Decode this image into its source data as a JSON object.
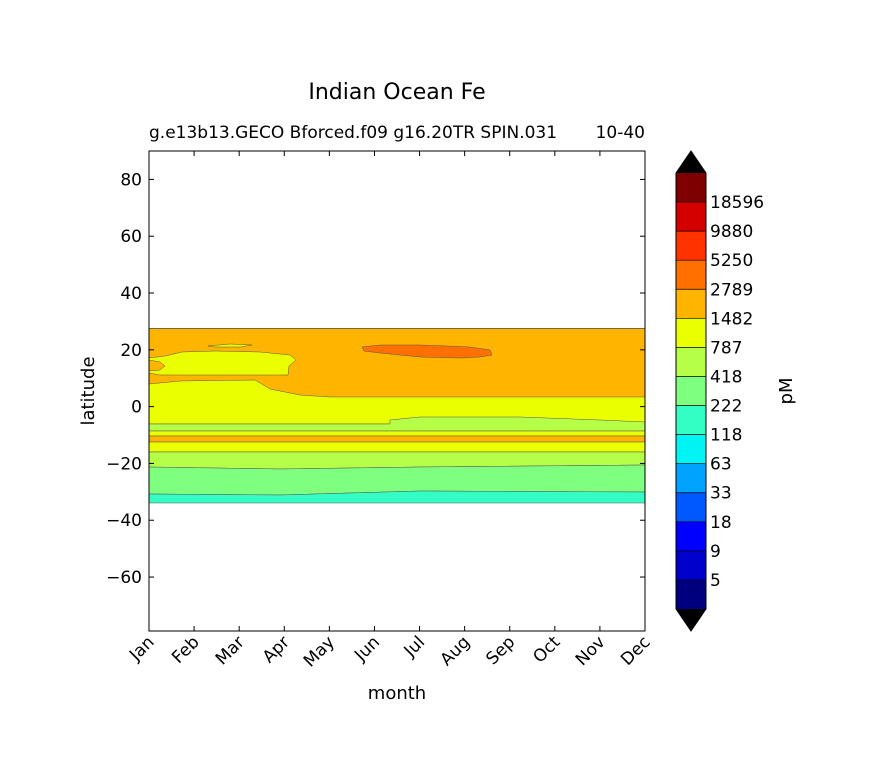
{
  "chart_data": {
    "type": "heatmap",
    "title": "Indian Ocean Fe",
    "subtitle": "g.e13b13.GECO Bforced.f09 g16.20TR SPIN.031",
    "subtitle_right": "10-40",
    "xlabel": "month",
    "ylabel": "latitude",
    "x_ticks": [
      "Jan",
      "Feb",
      "Mar",
      "Apr",
      "May",
      "Jun",
      "Jul",
      "Aug",
      "Sep",
      "Oct",
      "Nov",
      "Dec"
    ],
    "y_ticks": [
      80,
      60,
      40,
      20,
      0,
      -20,
      -40,
      -60
    ],
    "ylim": [
      -79,
      90
    ],
    "colorbar": {
      "label": "pM",
      "tick_labels": [
        "5",
        "9",
        "18",
        "33",
        "63",
        "118",
        "222",
        "418",
        "787",
        "1482",
        "2789",
        "5250",
        "9880",
        "18596"
      ],
      "colors": [
        "#00007f",
        "#0000cd",
        "#0000ff",
        "#0058ff",
        "#00a4ff",
        "#00f4f4",
        "#33ffc4",
        "#7fff7f",
        "#b6ff48",
        "#eaff00",
        "#ffb400",
        "#ff7000",
        "#ff3200",
        "#d40000",
        "#7f0000"
      ],
      "extend_min_color": "#000000",
      "extend_max_color": "#000000"
    },
    "fields": {
      "ocean_lat_range": [
        -34,
        27
      ],
      "bands": [
        {
          "value_class": "1482-2789",
          "note": "orange band north",
          "lat_range": [
            3,
            27
          ]
        },
        {
          "value_class": "787-1482",
          "lat_range": [
            -7,
            3
          ]
        },
        {
          "value_class": "418-787",
          "lat_range": [
            -9,
            -7
          ]
        },
        {
          "value_class": "787-1482",
          "lat_range": [
            -11,
            -9
          ]
        },
        {
          "value_class": "1482-2789",
          "lat_range": [
            -13,
            -11
          ]
        },
        {
          "value_class": "787-1482",
          "lat_range": [
            -16,
            -13
          ]
        },
        {
          "value_class": "418-787",
          "lat_range": [
            -21,
            -16
          ]
        },
        {
          "value_class": "222-418",
          "lat_range": [
            -31,
            -21
          ]
        },
        {
          "value_class": "118-222",
          "lat_range": [
            -34,
            -31
          ]
        }
      ]
    }
  }
}
